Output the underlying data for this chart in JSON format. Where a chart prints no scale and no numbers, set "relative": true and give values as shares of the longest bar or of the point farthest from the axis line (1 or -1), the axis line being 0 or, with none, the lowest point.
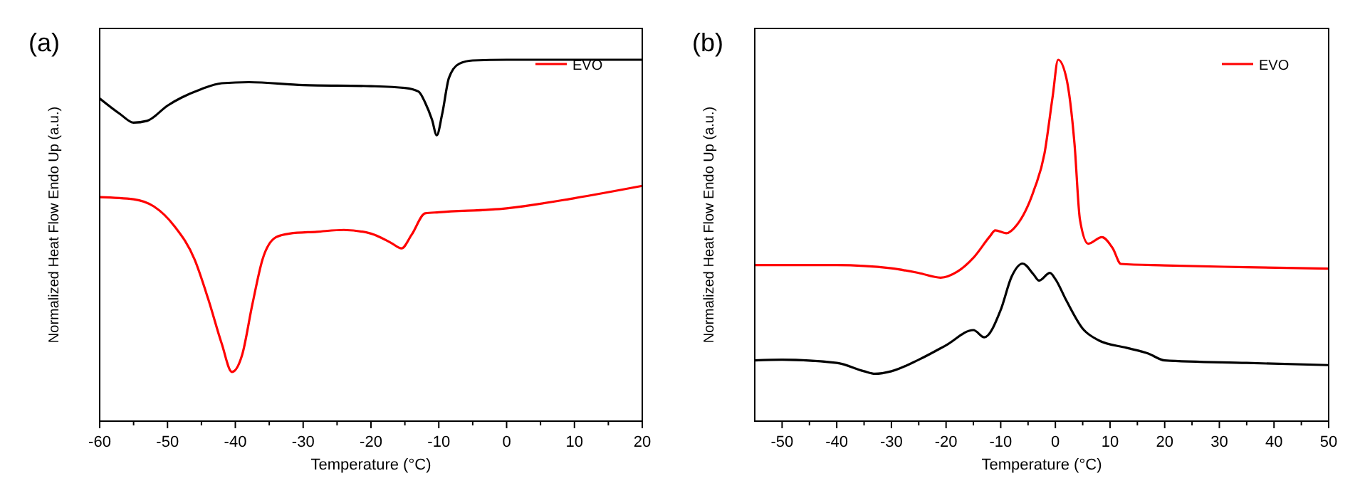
{
  "chart_data": [
    {
      "type": "line",
      "relative": true,
      "xlabel": "Temperature (°C)",
      "ylabel": "Normalized Heat Flow Endo Up (a.u.)",
      "annotations": [
        "(a)"
      ],
      "legend": "top right",
      "xlim": [
        -60,
        20
      ],
      "xticks": [
        -60,
        {
          "value": -55,
          "label": null
        },
        -50,
        {
          "value": -45,
          "label": null
        },
        -40,
        {
          "value": -35,
          "label": null
        },
        -30,
        {
          "value": -25,
          "label": null
        },
        -20,
        {
          "value": -15,
          "label": null
        },
        -10,
        {
          "value": -5,
          "label": null
        },
        0,
        {
          "value": 5,
          "label": null
        },
        10,
        {
          "value": 15,
          "label": null
        },
        20
      ],
      "series": [
        {
          "color": "#000000",
          "x": [
            -60,
            -57,
            -55,
            -53,
            -50,
            -45,
            -42,
            -38,
            -30,
            -20,
            -15,
            -13,
            -12,
            -11,
            -10.3,
            -9.5,
            -8.5,
            -7,
            -5,
            0,
            20
          ],
          "values": [
            0.893,
            0.85,
            0.826,
            0.831,
            0.873,
            0.919,
            0.935,
            0.938,
            0.93,
            0.927,
            0.922,
            0.912,
            0.881,
            0.834,
            0.791,
            0.85,
            0.95,
            0.989,
            0.998,
            1,
            1
          ]
        },
        {
          "name": "EVO",
          "color": "#ff0000",
          "x": [
            -60,
            -55,
            -52,
            -49,
            -46,
            -44,
            -42,
            -40.5,
            -39,
            -37.5,
            -36,
            -34,
            -32,
            -28,
            -24,
            -20,
            -17,
            -15.5,
            -14,
            -12,
            -10,
            0,
            10,
            20
          ],
          "values": [
            0.62,
            0.614,
            0.594,
            0.54,
            0.447,
            0.338,
            0.214,
            0.136,
            0.183,
            0.322,
            0.447,
            0.509,
            0.519,
            0.524,
            0.529,
            0.519,
            0.493,
            0.478,
            0.516,
            0.575,
            0.578,
            0.589,
            0.617,
            0.651
          ]
        }
      ]
    },
    {
      "type": "line",
      "relative": true,
      "xlabel": "Temperature (°C)",
      "ylabel": "Normalized Heat Flow Endo Up (a.u.)",
      "annotations": [
        "(b)"
      ],
      "legend": "top right",
      "xlim": [
        -55,
        50
      ],
      "xticks": [
        -50,
        {
          "value": -45,
          "label": null
        },
        -40,
        {
          "value": -35,
          "label": null
        },
        -30,
        {
          "value": -25,
          "label": null
        },
        -20,
        {
          "value": -15,
          "label": null
        },
        -10,
        {
          "value": -5,
          "label": null
        },
        0,
        {
          "value": 5,
          "label": null
        },
        10,
        {
          "value": 15,
          "label": null
        },
        20,
        {
          "value": 25,
          "label": null
        },
        30,
        {
          "value": 35,
          "label": null
        },
        40,
        {
          "value": 45,
          "label": null
        },
        50
      ],
      "series": [
        {
          "color": "#000000",
          "x": [
            -55,
            -50,
            -40,
            -35,
            -33,
            -30,
            -25,
            -20,
            -15,
            -13,
            -10,
            -8,
            -6,
            -4,
            -3,
            -1,
            0,
            2,
            5,
            8,
            13,
            17,
            20,
            35,
            50
          ],
          "values": [
            0.168,
            0.17,
            0.161,
            0.138,
            0.131,
            0.138,
            0.17,
            0.21,
            0.252,
            0.232,
            0.308,
            0.4,
            0.436,
            0.406,
            0.389,
            0.41,
            0.393,
            0.334,
            0.256,
            0.223,
            0.203,
            0.187,
            0.168,
            0.161,
            0.155
          ]
        },
        {
          "name": "EVO",
          "color": "#ff0000",
          "x": [
            -55,
            -40,
            -30,
            -25,
            -21,
            -18,
            -15,
            -12,
            -11,
            -9,
            -7,
            -4,
            -2,
            -0.5,
            0.5,
            2,
            3.5,
            4.5,
            6,
            8.5,
            10.5,
            12,
            20,
            35,
            50
          ],
          "values": [
            0.432,
            0.432,
            0.423,
            0.41,
            0.397,
            0.413,
            0.452,
            0.511,
            0.528,
            0.52,
            0.544,
            0.636,
            0.74,
            0.898,
            1,
            0.95,
            0.767,
            0.557,
            0.491,
            0.509,
            0.478,
            0.435,
            0.431,
            0.426,
            0.422
          ]
        }
      ]
    }
  ]
}
